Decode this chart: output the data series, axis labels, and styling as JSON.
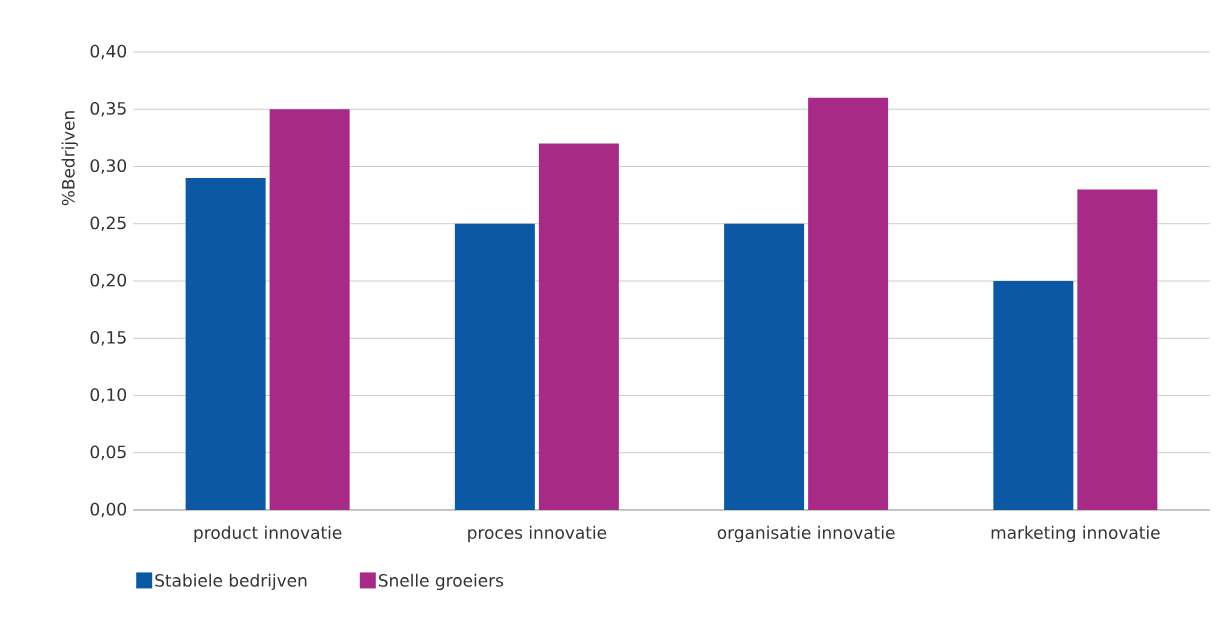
{
  "chart_data": {
    "type": "bar",
    "ylabel": "%Bedrijven",
    "categories": [
      "product innovatie",
      "proces innovatie",
      "organisatie innovatie",
      "marketing innovatie"
    ],
    "series": [
      {
        "name": "Stabiele bedrijven",
        "color": "#0d58a4",
        "values": [
          0.29,
          0.25,
          0.25,
          0.2
        ]
      },
      {
        "name": "Snelle groeiers",
        "color": "#a72a86",
        "values": [
          0.35,
          0.32,
          0.36,
          0.28
        ]
      }
    ],
    "ylim": [
      0,
      0.4
    ],
    "yticks": [
      {
        "value": 0,
        "label": "0,00"
      },
      {
        "value": 0.05,
        "label": "0,05"
      },
      {
        "value": 0.1,
        "label": "0,10"
      },
      {
        "value": 0.15,
        "label": "0,15"
      },
      {
        "value": 0.2,
        "label": "0,20"
      },
      {
        "value": 0.25,
        "label": "0,25"
      },
      {
        "value": 0.3,
        "label": "0,30"
      },
      {
        "value": 0.35,
        "label": "0,35"
      },
      {
        "value": 0.4,
        "label": "0,40"
      }
    ],
    "grid": "y",
    "legend": "bottom left"
  }
}
